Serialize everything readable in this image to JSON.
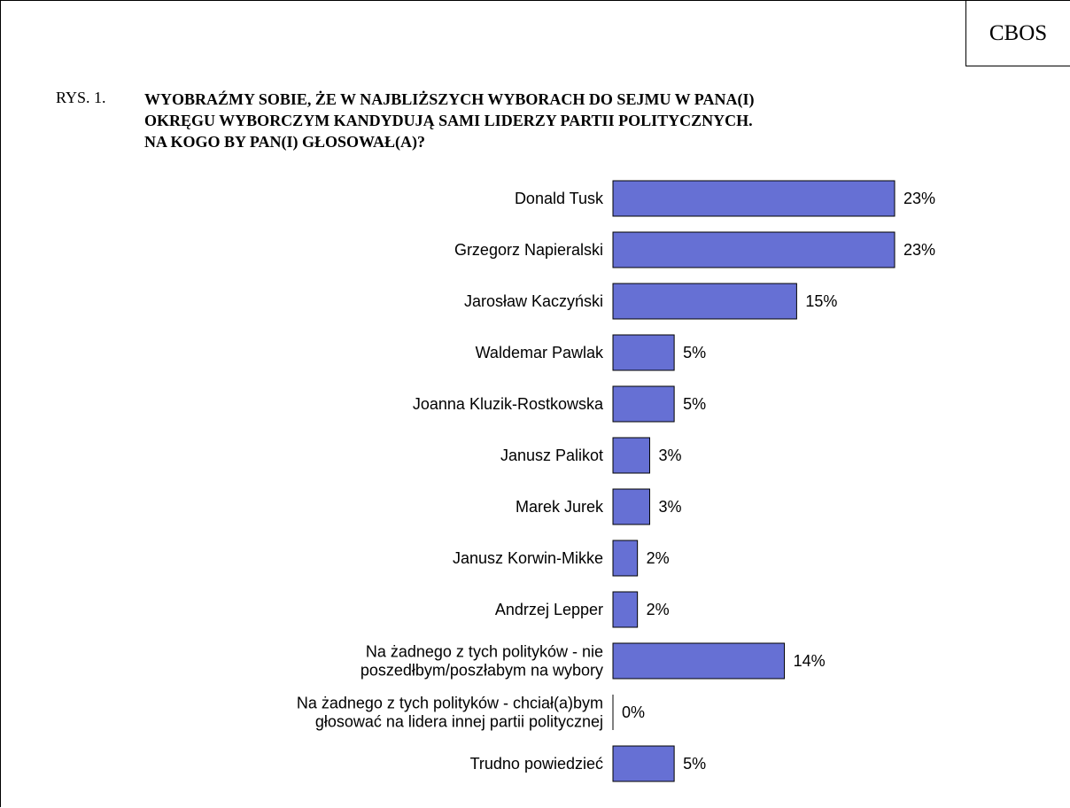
{
  "header": {
    "source_badge": "CBOS"
  },
  "figure": {
    "label": "RYS. 1.",
    "question_lines": [
      "WYOBRAŹMY SOBIE, ŻE W NAJBLIŻSZYCH WYBORACH DO SEJMU W PANA(I)",
      "OKRĘGU WYBORCZYM KANDYDUJĄ SAMI LIDERZY PARTII POLITYCZNYCH.",
      "NA KOGO BY PAN(I) GŁOSOWAŁ(A)?"
    ]
  },
  "colors": {
    "bar_fill": "#6670d4",
    "bar_stroke": "#000000"
  },
  "chart_data": {
    "type": "bar",
    "orientation": "horizontal",
    "title": "WYOBRAŹMY SOBIE, ŻE W NAJBLIŻSZYCH WYBORACH DO SEJMU W PANA(I) OKRĘGU WYBORCZYM KANDYDUJĄ SAMI LIDERZY PARTII POLITYCZNYCH. NA KOGO BY PAN(I) GŁOSOWAŁ(A)?",
    "categories": [
      [
        "Donald Tusk"
      ],
      [
        "Grzegorz Napieralski"
      ],
      [
        "Jarosław Kaczyński"
      ],
      [
        "Waldemar Pawlak"
      ],
      [
        "Joanna Kluzik-Rostkowska"
      ],
      [
        "Janusz Palikot"
      ],
      [
        "Marek Jurek"
      ],
      [
        "Janusz Korwin-Mikke"
      ],
      [
        "Andrzej Lepper"
      ],
      [
        "Na żadnego z tych polityków - nie",
        "poszedłbym/poszłabym na wybory"
      ],
      [
        "Na żadnego z tych polityków - chciał(a)bym",
        "głosować na lidera innej partii politycznej"
      ],
      [
        "Trudno powiedzieć"
      ]
    ],
    "values": [
      23,
      23,
      15,
      5,
      5,
      3,
      3,
      2,
      2,
      14,
      0,
      5
    ],
    "value_labels": [
      "23%",
      "23%",
      "15%",
      "5%",
      "5%",
      "3%",
      "3%",
      "2%",
      "2%",
      "14%",
      "0%",
      "5%"
    ],
    "unit": "%",
    "xlim": [
      0,
      23
    ],
    "grid": false,
    "legend": "none"
  }
}
